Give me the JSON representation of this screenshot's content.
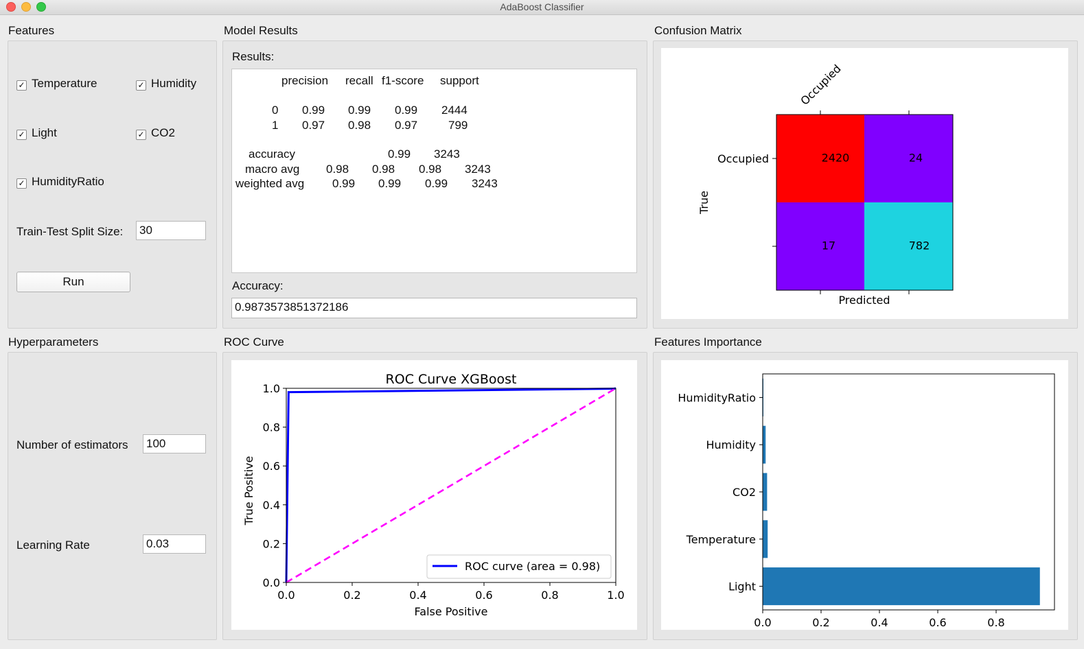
{
  "window": {
    "title": "AdaBoost Classifier"
  },
  "features": {
    "title": "Features",
    "checks": [
      {
        "label": "Temperature",
        "checked": true
      },
      {
        "label": "Humidity",
        "checked": true
      },
      {
        "label": "Light",
        "checked": true
      },
      {
        "label": "CO2",
        "checked": true
      },
      {
        "label": "HumidityRatio",
        "checked": true
      }
    ],
    "split_label": "Train-Test Split Size:",
    "split_value": "30",
    "run_label": "Run"
  },
  "hyperparameters": {
    "title": "Hyperparameters",
    "estimators_label": "Number of estimators",
    "estimators_value": "100",
    "lr_label": "Learning Rate",
    "lr_value": "0.03"
  },
  "model_results": {
    "title": "Model Results",
    "results_label": "Results:",
    "report": {
      "header": [
        "precision",
        "recall",
        "f1-score",
        "support"
      ],
      "rows": [
        [
          "0",
          "0.99",
          "0.99",
          "0.99",
          "2444"
        ],
        [
          "1",
          "0.97",
          "0.98",
          "0.97",
          "799"
        ]
      ],
      "accuracy": [
        "accuracy",
        "0.99",
        "3243"
      ],
      "macro": [
        "macro avg",
        "0.98",
        "0.98",
        "0.98",
        "3243"
      ],
      "weighted": [
        "weighted avg",
        "0.99",
        "0.99",
        "0.99",
        "3243"
      ]
    },
    "accuracy_label": "Accuracy:",
    "accuracy_value": "0.9873573851372186"
  },
  "confusion": {
    "title": "Confusion Matrix",
    "x_tick": "Occupied",
    "y_tick": "Occupied",
    "xlabel": "Predicted",
    "ylabel": "True"
  },
  "roc": {
    "title": "ROC Curve"
  },
  "importance": {
    "title": "Features Importance"
  },
  "chart_data": [
    {
      "type": "heatmap",
      "values": [
        [
          2420,
          24
        ],
        [
          17,
          782
        ]
      ],
      "cell_colors": [
        [
          "#ff0000",
          "#8000ff"
        ],
        [
          "#8000ff",
          "#1ed3e0"
        ]
      ],
      "xlabel": "Predicted",
      "ylabel": "True",
      "x_tick_labels": [
        "Occupied"
      ],
      "y_tick_labels": [
        "Occupied"
      ]
    },
    {
      "type": "line",
      "title": "ROC Curve XGBoost",
      "xlabel": "False Positive",
      "ylabel": "True Positive",
      "xlim": [
        0,
        1
      ],
      "ylim": [
        0,
        1
      ],
      "xticks": [
        "0.0",
        "0.2",
        "0.4",
        "0.6",
        "0.8",
        "1.0"
      ],
      "yticks": [
        "0.0",
        "0.2",
        "0.4",
        "0.6",
        "0.8",
        "1.0"
      ],
      "series": [
        {
          "name": "ROC curve (area = 0.98)",
          "color": "#0000ff",
          "x": [
            0,
            0.007,
            0.993,
            1.0
          ],
          "y": [
            0,
            0.98,
            0.998,
            1.0
          ]
        },
        {
          "color": "#ff00ff",
          "style": "dashed",
          "x": [
            0,
            1
          ],
          "y": [
            0,
            1
          ]
        }
      ],
      "legend": "lower-right"
    },
    {
      "type": "bar",
      "orientation": "horizontal",
      "categories": [
        "HumidityRatio",
        "Humidity",
        "CO2",
        "Temperature",
        "Light"
      ],
      "values": [
        0.002,
        0.01,
        0.015,
        0.017,
        0.95
      ],
      "color": "#1f77b4",
      "xticks": [
        "0.0",
        "0.2",
        "0.4",
        "0.6",
        "0.8"
      ],
      "xlim": [
        0,
        1.0
      ]
    }
  ]
}
